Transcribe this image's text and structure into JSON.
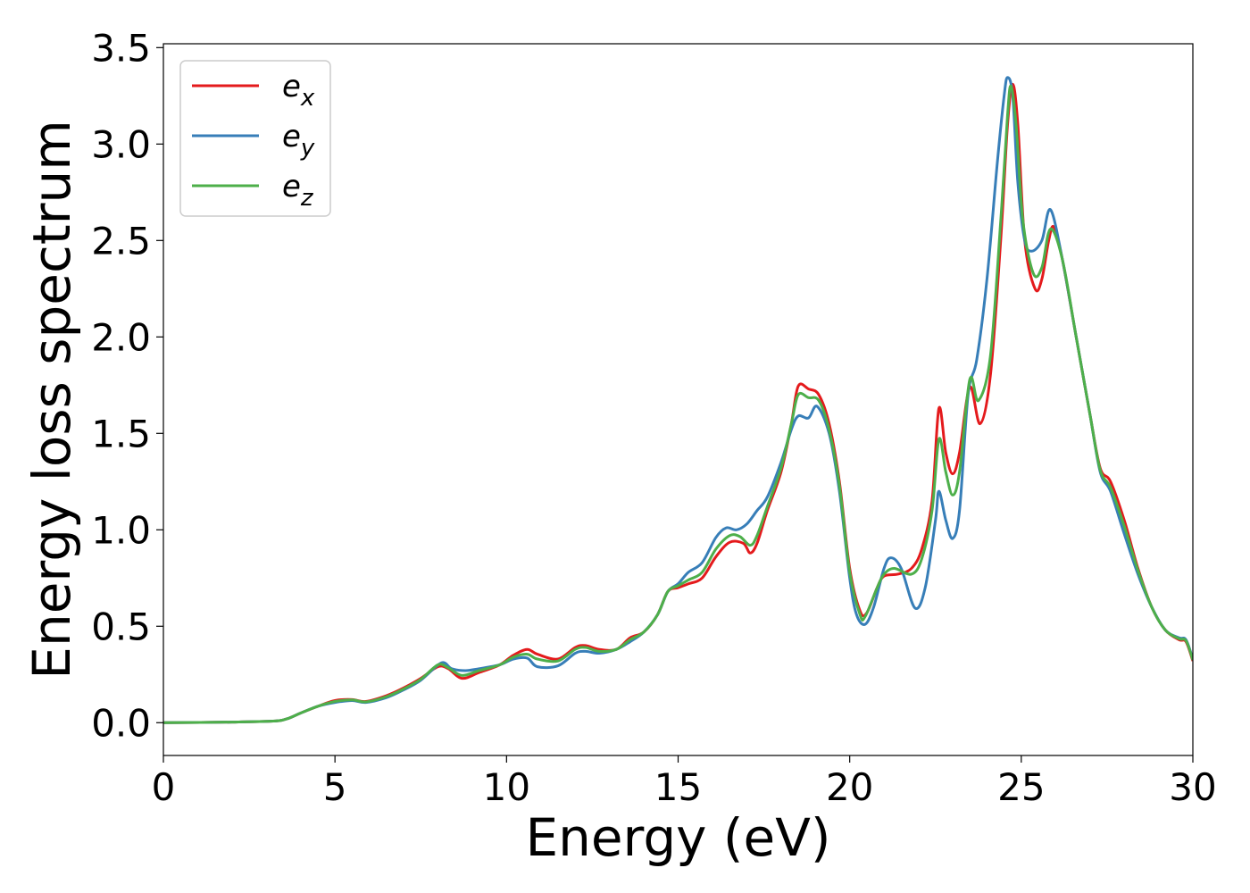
{
  "colors": {
    "background": "#ffffff",
    "axes": "#000000",
    "legend_border": "#cccccc"
  },
  "chart_data": {
    "type": "line",
    "title": "",
    "xlabel": "Energy (eV)",
    "ylabel": "Energy loss spectrum",
    "xlim": [
      0,
      30
    ],
    "ylim": [
      -0.17,
      3.52
    ],
    "xticks": [
      0,
      5,
      10,
      15,
      20,
      25,
      30
    ],
    "xtick_labels": [
      "0",
      "5",
      "10",
      "15",
      "20",
      "25",
      "30"
    ],
    "yticks": [
      0.0,
      0.5,
      1.0,
      1.5,
      2.0,
      2.5,
      3.0,
      3.5
    ],
    "ytick_labels": [
      "0.0",
      "0.5",
      "1.0",
      "1.5",
      "2.0",
      "2.5",
      "3.0",
      "3.5"
    ],
    "grid": false,
    "legend": "top-left",
    "series": [
      {
        "name": "e_x",
        "label_base": "e",
        "label_sub": "x",
        "color": "#e41a1c",
        "points": [
          [
            0,
            0
          ],
          [
            2,
            0.003
          ],
          [
            3.2,
            0.008
          ],
          [
            3.6,
            0.02
          ],
          [
            4,
            0.05
          ],
          [
            4.5,
            0.085
          ],
          [
            5,
            0.115
          ],
          [
            5.5,
            0.12
          ],
          [
            5.9,
            0.11
          ],
          [
            6.5,
            0.14
          ],
          [
            7,
            0.18
          ],
          [
            7.5,
            0.23
          ],
          [
            8.0,
            0.29
          ],
          [
            8.3,
            0.28
          ],
          [
            8.7,
            0.23
          ],
          [
            9.2,
            0.26
          ],
          [
            9.8,
            0.3
          ],
          [
            10.2,
            0.35
          ],
          [
            10.6,
            0.38
          ],
          [
            10.9,
            0.355
          ],
          [
            11.5,
            0.33
          ],
          [
            12.0,
            0.39
          ],
          [
            12.3,
            0.4
          ],
          [
            12.7,
            0.38
          ],
          [
            13.2,
            0.38
          ],
          [
            13.6,
            0.44
          ],
          [
            14.0,
            0.47
          ],
          [
            14.4,
            0.56
          ],
          [
            14.7,
            0.68
          ],
          [
            15.0,
            0.7
          ],
          [
            15.3,
            0.72
          ],
          [
            15.7,
            0.75
          ],
          [
            16.1,
            0.86
          ],
          [
            16.5,
            0.935
          ],
          [
            16.9,
            0.93
          ],
          [
            17.1,
            0.88
          ],
          [
            17.3,
            0.93
          ],
          [
            17.6,
            1.1
          ],
          [
            18.0,
            1.3
          ],
          [
            18.3,
            1.55
          ],
          [
            18.5,
            1.745
          ],
          [
            18.8,
            1.73
          ],
          [
            19.1,
            1.7
          ],
          [
            19.4,
            1.55
          ],
          [
            19.7,
            1.25
          ],
          [
            20.0,
            0.8
          ],
          [
            20.3,
            0.58
          ],
          [
            20.5,
            0.57
          ],
          [
            20.8,
            0.7
          ],
          [
            21.0,
            0.76
          ],
          [
            21.4,
            0.77
          ],
          [
            21.8,
            0.8
          ],
          [
            22.1,
            0.9
          ],
          [
            22.4,
            1.15
          ],
          [
            22.6,
            1.63
          ],
          [
            22.8,
            1.4
          ],
          [
            23.0,
            1.29
          ],
          [
            23.2,
            1.4
          ],
          [
            23.5,
            1.74
          ],
          [
            23.8,
            1.55
          ],
          [
            24.1,
            1.8
          ],
          [
            24.4,
            2.5
          ],
          [
            24.6,
            3.1
          ],
          [
            24.75,
            3.31
          ],
          [
            24.9,
            3.1
          ],
          [
            25.1,
            2.5
          ],
          [
            25.4,
            2.25
          ],
          [
            25.6,
            2.3
          ],
          [
            25.8,
            2.5
          ],
          [
            25.95,
            2.57
          ],
          [
            26.2,
            2.4
          ],
          [
            26.6,
            2.0
          ],
          [
            27.0,
            1.6
          ],
          [
            27.3,
            1.32
          ],
          [
            27.6,
            1.25
          ],
          [
            28.0,
            1.05
          ],
          [
            28.4,
            0.8
          ],
          [
            28.8,
            0.6
          ],
          [
            29.2,
            0.48
          ],
          [
            29.6,
            0.43
          ],
          [
            29.8,
            0.42
          ],
          [
            30.0,
            0.32
          ]
        ]
      },
      {
        "name": "e_y",
        "label_base": "e",
        "label_sub": "y",
        "color": "#377eb8",
        "points": [
          [
            0,
            0
          ],
          [
            2,
            0.003
          ],
          [
            3.2,
            0.008
          ],
          [
            3.6,
            0.02
          ],
          [
            4,
            0.05
          ],
          [
            4.5,
            0.085
          ],
          [
            5,
            0.105
          ],
          [
            5.5,
            0.115
          ],
          [
            5.9,
            0.105
          ],
          [
            6.5,
            0.13
          ],
          [
            7,
            0.17
          ],
          [
            7.5,
            0.22
          ],
          [
            8.1,
            0.31
          ],
          [
            8.4,
            0.28
          ],
          [
            8.8,
            0.27
          ],
          [
            9.2,
            0.28
          ],
          [
            9.8,
            0.3
          ],
          [
            10.2,
            0.33
          ],
          [
            10.6,
            0.335
          ],
          [
            10.9,
            0.29
          ],
          [
            11.5,
            0.295
          ],
          [
            12.0,
            0.36
          ],
          [
            12.3,
            0.37
          ],
          [
            12.7,
            0.36
          ],
          [
            13.2,
            0.38
          ],
          [
            13.6,
            0.42
          ],
          [
            14.0,
            0.47
          ],
          [
            14.4,
            0.56
          ],
          [
            14.7,
            0.68
          ],
          [
            15.0,
            0.72
          ],
          [
            15.3,
            0.78
          ],
          [
            15.7,
            0.83
          ],
          [
            16.1,
            0.96
          ],
          [
            16.4,
            1.01
          ],
          [
            16.7,
            1.0
          ],
          [
            17.0,
            1.03
          ],
          [
            17.3,
            1.1
          ],
          [
            17.6,
            1.17
          ],
          [
            18.0,
            1.35
          ],
          [
            18.3,
            1.52
          ],
          [
            18.5,
            1.59
          ],
          [
            18.8,
            1.58
          ],
          [
            19.05,
            1.64
          ],
          [
            19.4,
            1.5
          ],
          [
            19.7,
            1.2
          ],
          [
            20.0,
            0.75
          ],
          [
            20.2,
            0.56
          ],
          [
            20.45,
            0.51
          ],
          [
            20.7,
            0.6
          ],
          [
            21.0,
            0.8
          ],
          [
            21.2,
            0.855
          ],
          [
            21.5,
            0.8
          ],
          [
            21.9,
            0.595
          ],
          [
            22.2,
            0.7
          ],
          [
            22.5,
            1.05
          ],
          [
            22.6,
            1.2
          ],
          [
            22.8,
            1.05
          ],
          [
            23.0,
            0.955
          ],
          [
            23.2,
            1.1
          ],
          [
            23.45,
            1.7
          ],
          [
            23.7,
            1.88
          ],
          [
            24.0,
            2.3
          ],
          [
            24.3,
            2.9
          ],
          [
            24.5,
            3.25
          ],
          [
            24.6,
            3.345
          ],
          [
            24.75,
            3.25
          ],
          [
            24.9,
            2.8
          ],
          [
            25.1,
            2.5
          ],
          [
            25.3,
            2.445
          ],
          [
            25.6,
            2.5
          ],
          [
            25.85,
            2.66
          ],
          [
            26.2,
            2.4
          ],
          [
            26.6,
            2.0
          ],
          [
            27.0,
            1.6
          ],
          [
            27.3,
            1.3
          ],
          [
            27.6,
            1.2
          ],
          [
            28.0,
            0.98
          ],
          [
            28.4,
            0.77
          ],
          [
            28.8,
            0.6
          ],
          [
            29.2,
            0.48
          ],
          [
            29.6,
            0.44
          ],
          [
            29.8,
            0.43
          ],
          [
            30.0,
            0.33
          ]
        ]
      },
      {
        "name": "e_z",
        "label_base": "e",
        "label_sub": "z",
        "color": "#4daf4a",
        "points": [
          [
            0,
            0
          ],
          [
            2,
            0.003
          ],
          [
            3.2,
            0.008
          ],
          [
            3.6,
            0.02
          ],
          [
            4,
            0.05
          ],
          [
            4.5,
            0.085
          ],
          [
            5,
            0.11
          ],
          [
            5.5,
            0.118
          ],
          [
            5.9,
            0.108
          ],
          [
            6.5,
            0.135
          ],
          [
            7,
            0.175
          ],
          [
            7.5,
            0.225
          ],
          [
            8.0,
            0.3
          ],
          [
            8.3,
            0.285
          ],
          [
            8.7,
            0.245
          ],
          [
            9.2,
            0.27
          ],
          [
            9.8,
            0.3
          ],
          [
            10.2,
            0.34
          ],
          [
            10.6,
            0.355
          ],
          [
            10.9,
            0.33
          ],
          [
            11.5,
            0.32
          ],
          [
            12.0,
            0.38
          ],
          [
            12.3,
            0.39
          ],
          [
            12.7,
            0.37
          ],
          [
            13.2,
            0.38
          ],
          [
            13.6,
            0.43
          ],
          [
            14.0,
            0.47
          ],
          [
            14.4,
            0.56
          ],
          [
            14.7,
            0.68
          ],
          [
            15.0,
            0.71
          ],
          [
            15.3,
            0.74
          ],
          [
            15.7,
            0.78
          ],
          [
            16.1,
            0.9
          ],
          [
            16.5,
            0.97
          ],
          [
            16.8,
            0.965
          ],
          [
            17.1,
            0.92
          ],
          [
            17.3,
            0.97
          ],
          [
            17.6,
            1.12
          ],
          [
            18.0,
            1.32
          ],
          [
            18.3,
            1.55
          ],
          [
            18.5,
            1.7
          ],
          [
            18.8,
            1.685
          ],
          [
            19.1,
            1.67
          ],
          [
            19.4,
            1.52
          ],
          [
            19.7,
            1.23
          ],
          [
            20.0,
            0.78
          ],
          [
            20.3,
            0.56
          ],
          [
            20.45,
            0.55
          ],
          [
            20.8,
            0.7
          ],
          [
            21.0,
            0.77
          ],
          [
            21.3,
            0.8
          ],
          [
            21.8,
            0.77
          ],
          [
            22.1,
            0.85
          ],
          [
            22.4,
            1.1
          ],
          [
            22.6,
            1.47
          ],
          [
            22.8,
            1.3
          ],
          [
            23.0,
            1.18
          ],
          [
            23.2,
            1.3
          ],
          [
            23.5,
            1.78
          ],
          [
            23.75,
            1.67
          ],
          [
            24.1,
            1.9
          ],
          [
            24.4,
            2.6
          ],
          [
            24.6,
            3.15
          ],
          [
            24.7,
            3.3
          ],
          [
            24.85,
            3.1
          ],
          [
            25.05,
            2.6
          ],
          [
            25.35,
            2.33
          ],
          [
            25.6,
            2.36
          ],
          [
            25.85,
            2.56
          ],
          [
            26.2,
            2.4
          ],
          [
            26.6,
            2.0
          ],
          [
            27.0,
            1.6
          ],
          [
            27.3,
            1.31
          ],
          [
            27.6,
            1.22
          ],
          [
            28.0,
            1.02
          ],
          [
            28.4,
            0.79
          ],
          [
            28.8,
            0.6
          ],
          [
            29.2,
            0.48
          ],
          [
            29.6,
            0.435
          ],
          [
            29.8,
            0.425
          ],
          [
            30.0,
            0.325
          ]
        ]
      }
    ]
  }
}
